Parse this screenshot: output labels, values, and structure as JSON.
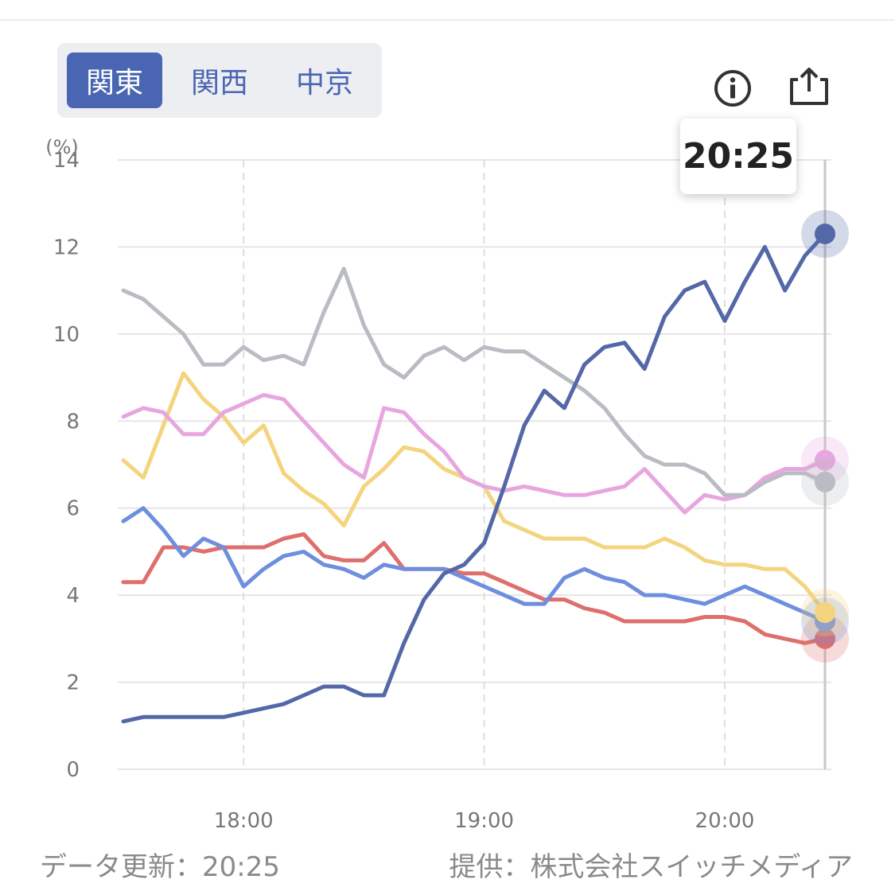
{
  "region_tabs": [
    {
      "label": "関東",
      "active": true
    },
    {
      "label": "関西",
      "active": false
    },
    {
      "label": "中京",
      "active": false
    }
  ],
  "icons": {
    "info": "info-circle-icon",
    "share": "share-upload-icon"
  },
  "tooltip": {
    "time": "20:25"
  },
  "footer": {
    "updated": "データ更新：20:25",
    "provider": "提供：株式会社スイッチメディア"
  },
  "colors": {
    "active_tab": "#4a66b3",
    "series": [
      "#5468a8",
      "#b9bcc2",
      "#e7a6df",
      "#f4d47e",
      "#6d8fde",
      "#de6f6c"
    ]
  },
  "chart_data": {
    "type": "line",
    "y_unit": "(%)",
    "ylim": [
      0,
      14
    ],
    "y_ticks": [
      "0",
      "2",
      "4",
      "6",
      "8",
      "10",
      "12",
      "14"
    ],
    "x_ticks": [
      "18:00",
      "19:00",
      "20:00"
    ],
    "grid": true,
    "x": [
      "17:30",
      "17:35",
      "17:40",
      "17:45",
      "17:50",
      "17:55",
      "18:00",
      "18:05",
      "18:10",
      "18:15",
      "18:20",
      "18:25",
      "18:30",
      "18:35",
      "18:40",
      "18:45",
      "18:50",
      "18:55",
      "19:00",
      "19:05",
      "19:10",
      "19:15",
      "19:20",
      "19:25",
      "19:30",
      "19:35",
      "19:40",
      "19:45",
      "19:50",
      "19:55",
      "20:00",
      "20:05",
      "20:10",
      "20:15",
      "20:20",
      "20:25"
    ],
    "series": [
      {
        "values": [
          1.1,
          1.2,
          1.2,
          1.2,
          1.2,
          1.2,
          1.3,
          1.4,
          1.5,
          1.7,
          1.9,
          1.9,
          1.7,
          1.7,
          2.9,
          3.9,
          4.5,
          4.7,
          5.2,
          6.5,
          7.9,
          8.7,
          8.3,
          9.3,
          9.7,
          9.8,
          9.2,
          10.4,
          11.0,
          11.2,
          10.3,
          11.2,
          12.0,
          11.0,
          11.8,
          12.3
        ]
      },
      {
        "values": [
          11.0,
          10.8,
          10.4,
          10.0,
          9.3,
          9.3,
          9.7,
          9.4,
          9.5,
          9.3,
          10.5,
          11.5,
          10.2,
          9.3,
          9.0,
          9.5,
          9.7,
          9.4,
          9.7,
          9.6,
          9.6,
          9.3,
          9.0,
          8.7,
          8.3,
          7.7,
          7.2,
          7.0,
          7.0,
          6.8,
          6.3,
          6.3,
          6.6,
          6.8,
          6.8,
          6.6
        ]
      },
      {
        "values": [
          8.1,
          8.3,
          8.2,
          7.7,
          7.7,
          8.2,
          8.4,
          8.6,
          8.5,
          8.0,
          7.5,
          7.0,
          6.7,
          8.3,
          8.2,
          7.7,
          7.3,
          6.7,
          6.5,
          6.4,
          6.5,
          6.4,
          6.3,
          6.3,
          6.4,
          6.5,
          6.9,
          6.4,
          5.9,
          6.3,
          6.2,
          6.3,
          6.7,
          6.9,
          6.9,
          7.1
        ]
      },
      {
        "values": [
          7.1,
          6.7,
          7.9,
          9.1,
          8.5,
          8.1,
          7.5,
          7.9,
          6.8,
          6.4,
          6.1,
          5.6,
          6.5,
          6.9,
          7.4,
          7.3,
          6.9,
          6.7,
          6.5,
          5.7,
          5.5,
          5.3,
          5.3,
          5.3,
          5.1,
          5.1,
          5.1,
          5.3,
          5.1,
          4.8,
          4.7,
          4.7,
          4.6,
          4.6,
          4.2,
          3.6
        ]
      },
      {
        "values": [
          5.7,
          6.0,
          5.5,
          4.9,
          5.3,
          5.1,
          4.2,
          4.6,
          4.9,
          5.0,
          4.7,
          4.6,
          4.4,
          4.7,
          4.6,
          4.6,
          4.6,
          4.4,
          4.2,
          4.0,
          3.8,
          3.8,
          4.4,
          4.6,
          4.4,
          4.3,
          4.0,
          4.0,
          3.9,
          3.8,
          4.0,
          4.2,
          4.0,
          3.8,
          3.6,
          3.4
        ]
      },
      {
        "values": [
          4.3,
          4.3,
          5.1,
          5.1,
          5.0,
          5.1,
          5.1,
          5.1,
          5.3,
          5.4,
          4.9,
          4.8,
          4.8,
          5.2,
          4.6,
          4.6,
          4.6,
          4.5,
          4.5,
          4.3,
          4.1,
          3.9,
          3.9,
          3.7,
          3.6,
          3.4,
          3.4,
          3.4,
          3.4,
          3.5,
          3.5,
          3.4,
          3.1,
          3.0,
          2.9,
          3.0
        ]
      }
    ]
  }
}
